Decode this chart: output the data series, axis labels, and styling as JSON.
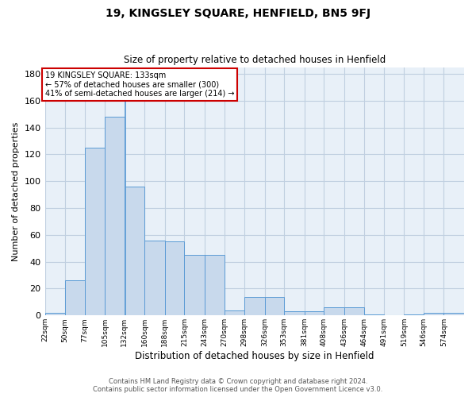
{
  "title": "19, KINGSLEY SQUARE, HENFIELD, BN5 9FJ",
  "subtitle": "Size of property relative to detached houses in Henfield",
  "xlabel": "Distribution of detached houses by size in Henfield",
  "ylabel": "Number of detached properties",
  "bar_values": [
    2,
    26,
    125,
    148,
    96,
    56,
    55,
    45,
    45,
    4,
    14,
    14,
    3,
    3,
    6,
    6,
    1,
    0,
    1,
    2,
    2
  ],
  "bin_edges": [
    22,
    50,
    77,
    105,
    132,
    160,
    188,
    215,
    243,
    270,
    298,
    326,
    353,
    381,
    408,
    436,
    464,
    491,
    519,
    546,
    574,
    602
  ],
  "tick_labels": [
    "22sqm",
    "50sqm",
    "77sqm",
    "105sqm",
    "132sqm",
    "160sqm",
    "188sqm",
    "215sqm",
    "243sqm",
    "270sqm",
    "298sqm",
    "326sqm",
    "353sqm",
    "381sqm",
    "408sqm",
    "436sqm",
    "464sqm",
    "491sqm",
    "519sqm",
    "546sqm",
    "574sqm"
  ],
  "bar_color": "#c8d9ec",
  "bar_edge_color": "#5b9bd5",
  "grid_color": "#c0cfe0",
  "bg_color": "#e8f0f8",
  "property_line_x": 133,
  "annotation_text_line1": "19 KINGSLEY SQUARE: 133sqm",
  "annotation_text_line2": "← 57% of detached houses are smaller (300)",
  "annotation_text_line3": "41% of semi-detached houses are larger (214) →",
  "annotation_box_color": "white",
  "annotation_box_edge": "#cc0000",
  "ylim": [
    0,
    185
  ],
  "yticks": [
    0,
    20,
    40,
    60,
    80,
    100,
    120,
    140,
    160,
    180
  ],
  "footer_line1": "Contains HM Land Registry data © Crown copyright and database right 2024.",
  "footer_line2": "Contains public sector information licensed under the Open Government Licence v3.0."
}
